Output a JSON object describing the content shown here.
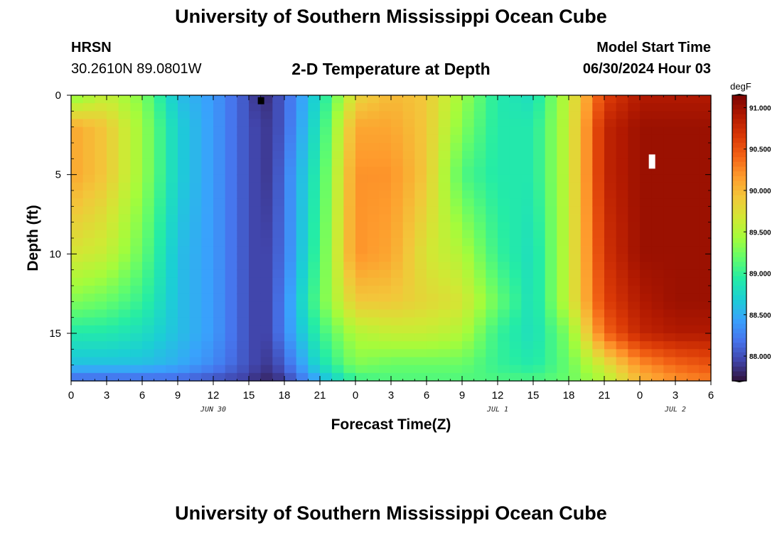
{
  "header": {
    "title": "University of Southern Mississippi Ocean Cube",
    "station_code": "HRSN",
    "station_coords": "30.2610N  89.0801W",
    "plot_title": "2-D Temperature at Depth",
    "model_start_label": "Model Start Time",
    "model_start_value": "06/30/2024 Hour 03"
  },
  "footer": {
    "title": "University of Southern Mississippi Ocean Cube"
  },
  "chart_data": {
    "type": "heatmap",
    "title": "2-D Temperature at Depth",
    "xlabel": "Forecast Time(Z)",
    "ylabel": "Depth (ft)",
    "x_ticks": [
      "0",
      "3",
      "6",
      "9",
      "12",
      "15",
      "18",
      "21",
      "0",
      "3",
      "6",
      "9",
      "12",
      "15",
      "18",
      "21",
      "0",
      "3",
      "6"
    ],
    "date_labels": [
      "JUN 30",
      "JUL 1",
      "JUL 2"
    ],
    "y_ticks": [
      "0",
      "5",
      "10",
      "15"
    ],
    "y_range": [
      0,
      18
    ],
    "x_range_hours": [
      0,
      54
    ],
    "colorbar": {
      "units": "degF",
      "min": 87.7,
      "max": 91.15,
      "tick_labels": [
        "91.000",
        "90.500",
        "90.000",
        "89.500",
        "89.000",
        "88.500",
        "88.000"
      ],
      "colors": [
        "#30123b",
        "#4145ab",
        "#4675ed",
        "#39a2fc",
        "#1bcfd4",
        "#24eca6",
        "#61fc6c",
        "#a4fc3b",
        "#d1e834",
        "#f3c63a",
        "#fe9b2d",
        "#f36315",
        "#d93806",
        "#b11901",
        "#7a0402"
      ]
    },
    "time_hours": [
      0,
      3,
      6,
      9,
      12,
      15,
      16,
      17,
      18,
      21,
      24,
      27,
      30,
      33,
      36,
      39,
      42,
      45,
      48,
      51,
      54
    ],
    "depths_ft": [
      0,
      2,
      5,
      10,
      13,
      15,
      17,
      18
    ],
    "temperature_degF": [
      [
        89.3,
        89.6,
        89.3,
        88.6,
        88.4,
        88.0,
        87.8,
        87.9,
        88.1,
        88.8,
        89.8,
        90.0,
        89.9,
        89.4,
        88.9,
        88.8,
        89.6,
        90.6,
        90.9,
        90.9,
        90.9
      ],
      [
        90.1,
        89.9,
        89.4,
        88.7,
        88.4,
        88.0,
        87.9,
        87.9,
        88.1,
        88.9,
        90.1,
        90.1,
        89.9,
        89.3,
        88.9,
        88.9,
        89.6,
        90.8,
        91.0,
        91.0,
        91.0
      ],
      [
        90.1,
        89.9,
        89.4,
        88.7,
        88.4,
        88.0,
        87.9,
        87.9,
        88.2,
        89.0,
        90.2,
        90.2,
        89.9,
        89.1,
        88.9,
        88.9,
        89.6,
        90.8,
        91.0,
        91.0,
        91.0
      ],
      [
        89.7,
        89.6,
        89.2,
        88.6,
        88.4,
        88.0,
        87.9,
        88.0,
        88.2,
        89.1,
        90.2,
        90.1,
        89.7,
        89.5,
        89.0,
        88.8,
        89.6,
        90.7,
        91.0,
        91.0,
        91.0
      ],
      [
        89.3,
        89.2,
        89.0,
        88.6,
        88.4,
        88.0,
        87.9,
        88.0,
        88.3,
        89.2,
        89.9,
        89.9,
        89.8,
        89.7,
        89.2,
        88.8,
        89.6,
        90.6,
        90.9,
        91.0,
        91.0
      ],
      [
        88.9,
        88.9,
        88.8,
        88.6,
        88.4,
        88.0,
        87.9,
        88.0,
        88.3,
        89.0,
        89.5,
        89.6,
        89.6,
        89.5,
        89.0,
        88.8,
        89.3,
        90.4,
        90.8,
        90.9,
        90.9
      ],
      [
        88.6,
        88.6,
        88.6,
        88.5,
        88.3,
        88.0,
        87.9,
        87.9,
        88.1,
        88.8,
        89.3,
        89.2,
        89.2,
        89.2,
        89.0,
        88.9,
        89.2,
        89.7,
        90.2,
        90.4,
        90.5
      ],
      [
        88.1,
        88.1,
        88.1,
        88.1,
        88.0,
        87.9,
        87.8,
        87.8,
        87.9,
        88.5,
        89.0,
        89.1,
        89.1,
        89.1,
        89.1,
        89.1,
        89.2,
        89.5,
        90.0,
        90.2,
        90.3
      ]
    ],
    "markers": [
      {
        "hour": 16,
        "depth_ft": 0.3,
        "color": "#000000"
      },
      {
        "hour": 49,
        "depth_ft": 4.0,
        "color": "#ffffff"
      }
    ]
  }
}
